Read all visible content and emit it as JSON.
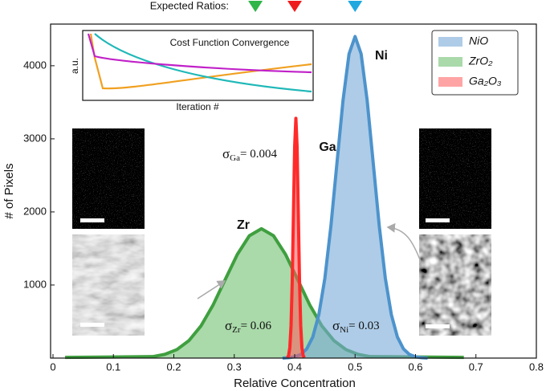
{
  "chart_data": {
    "type": "area",
    "xlabel": "Relative Concentration",
    "ylabel": "# of Pixels",
    "xlim": [
      0,
      0.8
    ],
    "ylim": [
      0,
      4570
    ],
    "xticks": [
      0,
      0.1,
      0.2,
      0.3,
      0.4,
      0.5,
      0.6,
      0.7,
      0.8
    ],
    "yticks": [
      1000,
      2000,
      3000,
      4000
    ],
    "legend": "upper right",
    "series": [
      {
        "name": "NiO",
        "color": "rgba(120,170,215,0.6)",
        "line_color": "#4d93cc",
        "x": [
          0.38,
          0.39,
          0.4,
          0.41,
          0.42,
          0.43,
          0.44,
          0.45,
          0.46,
          0.47,
          0.48,
          0.49,
          0.5,
          0.51,
          0.52,
          0.53,
          0.54,
          0.55,
          0.56,
          0.57,
          0.58,
          0.59,
          0.6,
          0.61,
          0.62
        ],
        "values": [
          0,
          5,
          17,
          49,
          126,
          289,
          595,
          1094,
          1808,
          2669,
          3524,
          4162,
          4400,
          4162,
          3524,
          2669,
          1808,
          1094,
          595,
          289,
          126,
          49,
          17,
          5,
          0
        ]
      },
      {
        "name": "ZrO₂",
        "color": "rgba(100,185,100,0.55)",
        "line_color": "#3f9f3f",
        "x": [
          0.02,
          0.1,
          0.165,
          0.185,
          0.205,
          0.225,
          0.245,
          0.265,
          0.285,
          0.305,
          0.325,
          0.345,
          0.365,
          0.385,
          0.405,
          0.425,
          0.445,
          0.465,
          0.485,
          0.505,
          0.525,
          0.6,
          0.68
        ],
        "values": [
          10,
          15,
          20,
          51,
          116,
          239,
          441,
          727,
          1074,
          1417,
          1674,
          1770,
          1674,
          1417,
          1074,
          727,
          441,
          239,
          116,
          51,
          20,
          15,
          10
        ]
      },
      {
        "name": "Ga₂O₃",
        "color": "rgba(255,90,90,0.55)",
        "line_color": "#ff2a2a",
        "x": [
          0.388,
          0.39,
          0.392,
          0.394,
          0.396,
          0.398,
          0.4,
          0.402,
          0.404,
          0.406,
          0.408,
          0.41,
          0.412,
          0.414,
          0.416
        ],
        "values": [
          7,
          36,
          144,
          444,
          1065,
          1989,
          2895,
          3280,
          2895,
          1989,
          1065,
          444,
          144,
          36,
          7
        ]
      }
    ],
    "expected_ratios": {
      "label": "Expected Ratios:",
      "markers": [
        {
          "value": 0.335,
          "color": "#2fb548"
        },
        {
          "value": 0.4,
          "color": "#ee1c1c"
        },
        {
          "value": 0.5,
          "color": "#1fa8e0"
        }
      ]
    },
    "annotations": [
      {
        "text": "Ni"
      },
      {
        "text": "Ga"
      },
      {
        "text": "Zr"
      }
    ],
    "sigma_labels": [
      {
        "symbol": "σ",
        "sub": "Ga",
        "text": "= 0.004"
      },
      {
        "symbol": "σ",
        "sub": "Zr",
        "text": "= 0.06"
      },
      {
        "symbol": "σ",
        "sub": "Ni",
        "text": "= 0.03"
      }
    ],
    "inset": {
      "title": "Cost Function Convergence",
      "ylabel": "a.u.",
      "xlabel": "Iteration #"
    },
    "images": [
      {
        "label": "Zr"
      },
      {
        "label": "Zr"
      },
      {
        "label": "Ni"
      },
      {
        "label": "Ni"
      }
    ]
  }
}
